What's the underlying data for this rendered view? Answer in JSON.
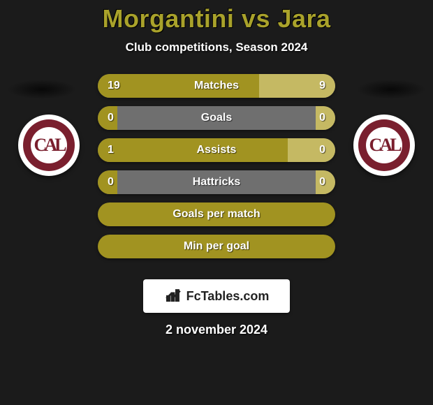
{
  "title": "Morgantini vs Jara",
  "subtitle": "Club competitions, Season 2024",
  "title_color": "#a9a22b",
  "bar_left_color": "#a19321",
  "bar_right_color": "#c5b963",
  "bar_full_color": "#a19321",
  "bar_neutral_color": "#6f6f6f",
  "badge_ring_color": "#7a1f2e",
  "badge_text_color": "#7a1f2e",
  "badges": {
    "left_monogram": "CAL",
    "right_monogram": "CAL"
  },
  "rows": [
    {
      "type": "split",
      "label": "Matches",
      "left": "19",
      "right": "9",
      "left_pct": 68,
      "right_pct": 32
    },
    {
      "type": "split",
      "label": "Goals",
      "left": "0",
      "right": "0",
      "left_pct": 7,
      "right_pct": 7
    },
    {
      "type": "split",
      "label": "Assists",
      "left": "1",
      "right": "0",
      "left_pct": 80,
      "right_pct": 20
    },
    {
      "type": "split",
      "label": "Hattricks",
      "left": "0",
      "right": "0",
      "left_pct": 7,
      "right_pct": 7
    },
    {
      "type": "full",
      "label": "Goals per match"
    },
    {
      "type": "full",
      "label": "Min per goal"
    }
  ],
  "credit": "FcTables.com",
  "date": "2 november 2024"
}
